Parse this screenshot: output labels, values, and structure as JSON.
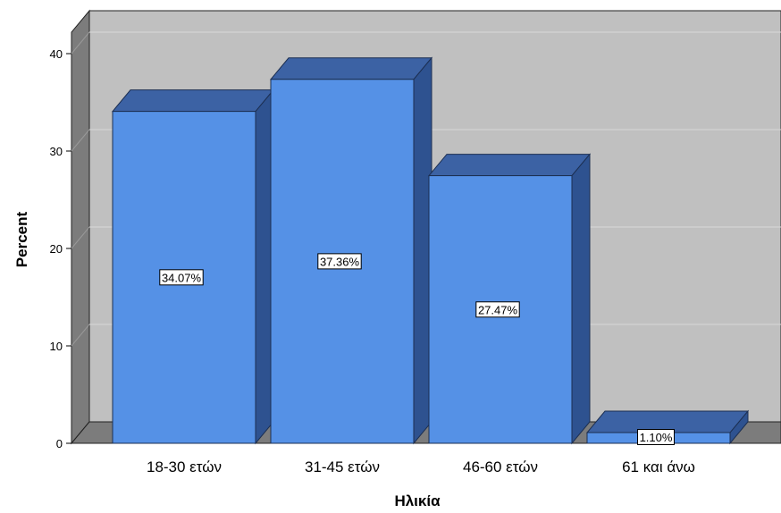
{
  "chart_data": {
    "type": "bar",
    "categories": [
      "18-30 ετών",
      "31-45 ετών",
      "46-60 ετών",
      "61 και άνω"
    ],
    "values": [
      34.07,
      37.36,
      27.47,
      1.1
    ],
    "data_labels": [
      "34.07%",
      "37.36%",
      "27.47%",
      "1.10%"
    ],
    "xlabel": "Ηλικία",
    "ylabel": "Percent",
    "yticks": [
      0,
      10,
      20,
      30,
      40
    ],
    "ylim": [
      0,
      40
    ],
    "grid": true,
    "style": "3d",
    "colors": {
      "bar_front": "#5591e6",
      "bar_top": "#3c62a4",
      "bar_side": "#2e5290",
      "plot_back": "#c0c0c0",
      "plot_floor": "#7c7c7c",
      "plot_wall": "#7c7c7c",
      "gridline": "#d9d9d9"
    }
  }
}
